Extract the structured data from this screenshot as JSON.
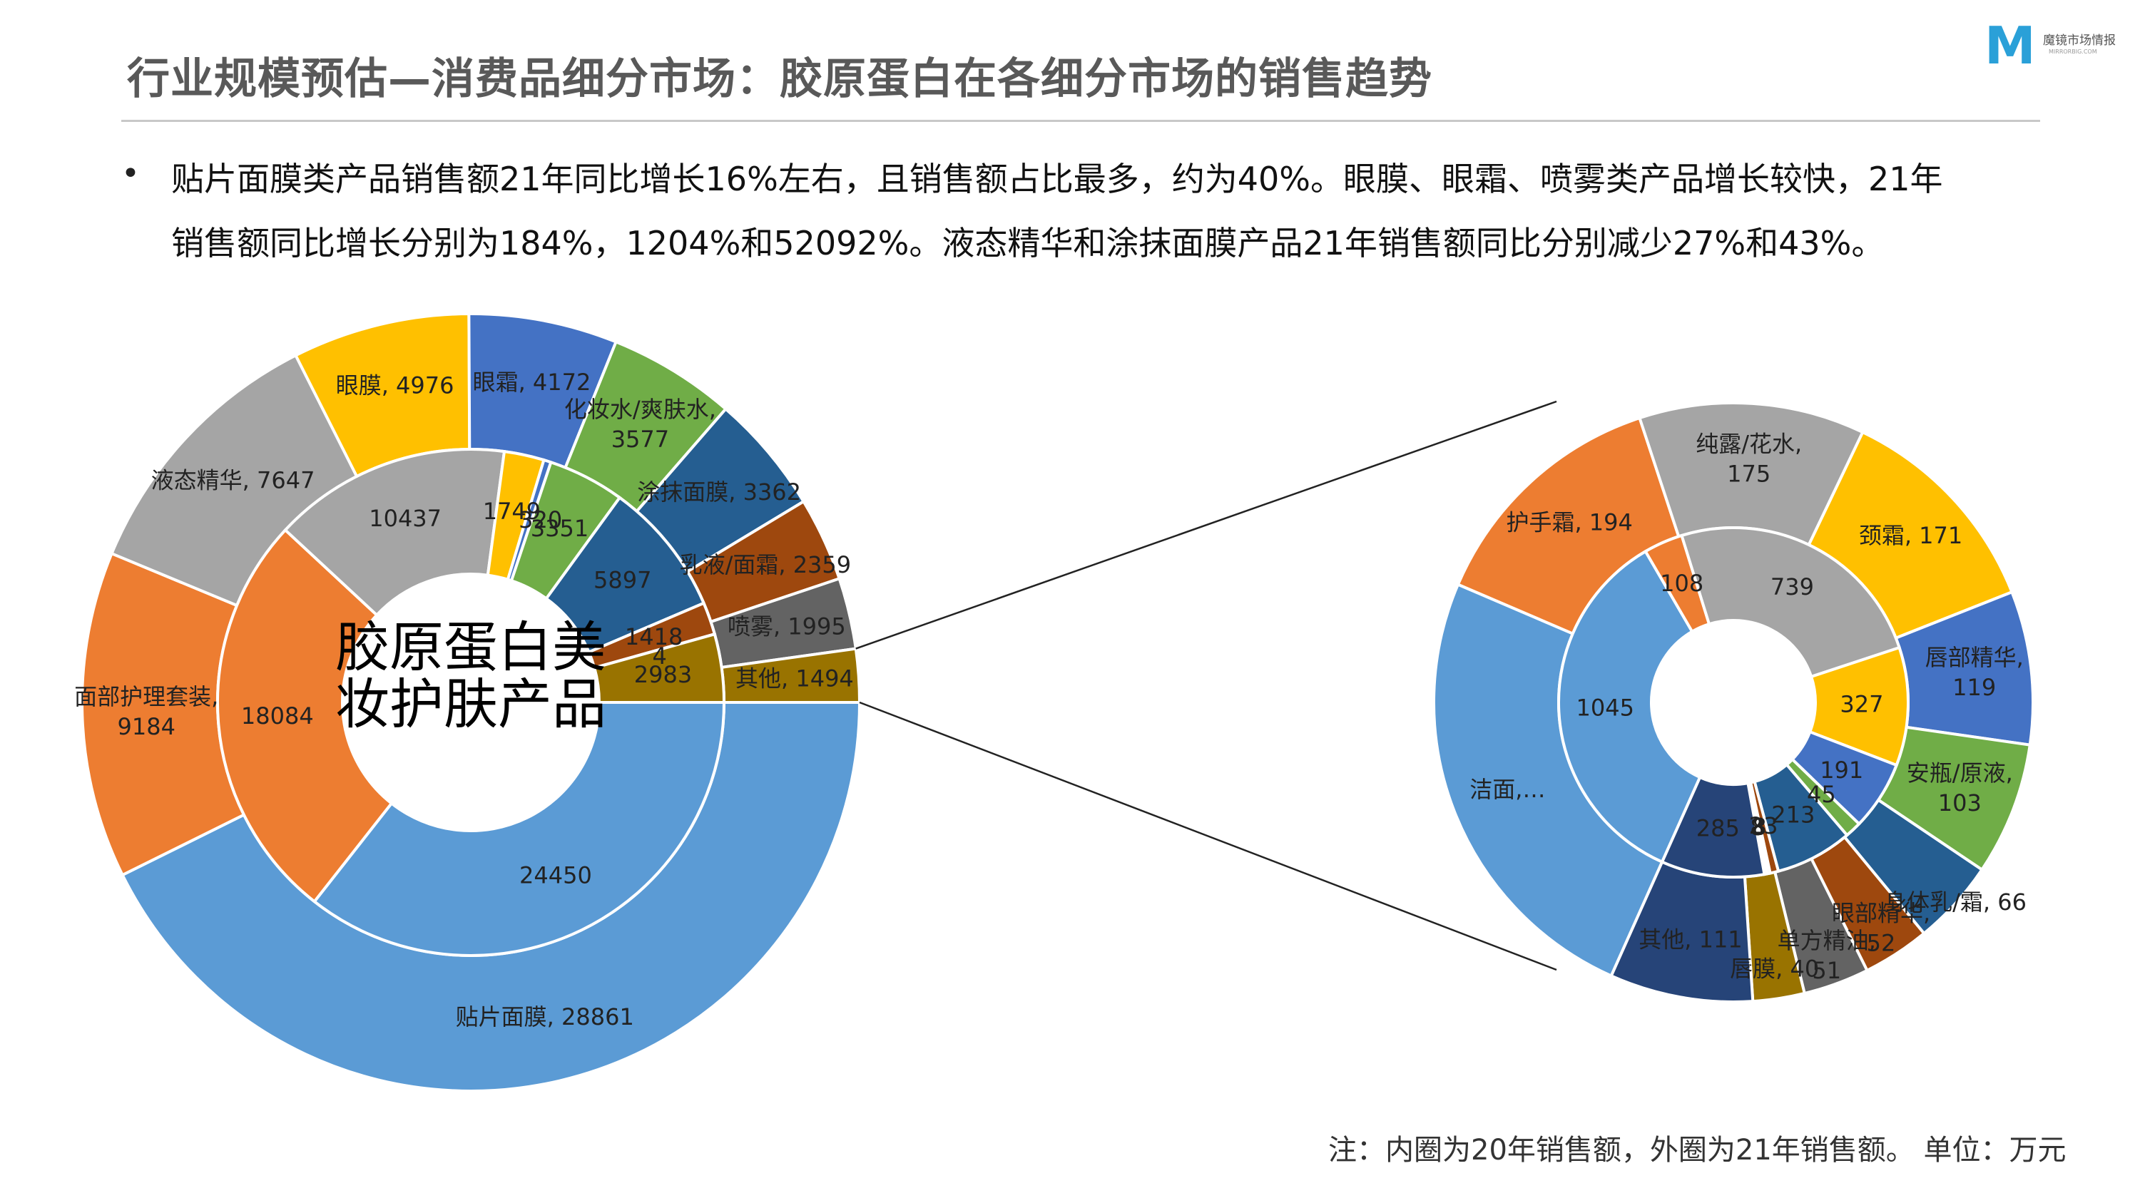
{
  "header": {
    "title": "行业规模预估—消费品细分市场：胶原蛋白在各细分市场的销售趋势",
    "logo_text": "魔镜市场情报",
    "logo_sub": "MIRRORBIG.COM",
    "logo_mark": "M"
  },
  "description": {
    "bullet": "•",
    "line1": "贴片面膜类产品销售额21年同比增长16%左右，且销售额占比最多，约为40%。眼膜、眼霜、喷雾类产品增长较快，21年",
    "line2": "销售额同比增长分别为184%，1204%和52092%。液态精华和涂抹面膜产品21年销售额同比分别减少27%和43%。"
  },
  "footnote": "注：内圈为20年销售额，外圈为21年销售额。 单位：万元",
  "chart_data": [
    {
      "type": "pie",
      "subtype": "double-donut",
      "center_label_line1": "胶原蛋白美",
      "center_label_line2": "妆护肤产品",
      "categories": [
        "贴片面膜",
        "面部护理套装",
        "液态精华",
        "眼膜",
        "眼霜",
        "化妆水/爽肤水",
        "涂抹面膜",
        "乳液/面霜",
        "喷雾",
        "其他"
      ],
      "colors": [
        "#5b9bd5",
        "#ed7d31",
        "#a5a5a5",
        "#ffc000",
        "#4472c4",
        "#70ad47",
        "#255e91",
        "#9e480e",
        "#636363",
        "#997300"
      ],
      "series": [
        {
          "name": "21年",
          "ring": "outer",
          "values": [
            28861,
            9184,
            7647,
            4976,
            4172,
            3577,
            3362,
            2359,
            1995,
            1494
          ],
          "labels": [
            "贴片面膜, 28861",
            "面部护理套装, 9184",
            "液态精华, 7647",
            "眼膜, 4976",
            "眼霜, 4172",
            "化妆水/爽肤水, 3577",
            "涂抹面膜, 3362",
            "乳液/面霜, 2359",
            "喷雾, 1995",
            "其他, 1494"
          ]
        },
        {
          "name": "20年",
          "ring": "inner",
          "values": [
            24450,
            18084,
            10437,
            1749,
            320,
            3351,
            5897,
            1418,
            4,
            2983
          ],
          "labels": [
            "24450",
            "18084",
            "10437",
            "1749",
            "320",
            "3351",
            "5897",
            "1418",
            "4",
            "2983"
          ]
        }
      ]
    },
    {
      "type": "pie",
      "subtype": "double-donut",
      "categories": [
        "洁面",
        "护手霜",
        "纯露/花水",
        "颈霜",
        "唇部精华",
        "安瓶/原液",
        "身体乳/霜",
        "眼部精华",
        "单方精油",
        "唇膜",
        "其他"
      ],
      "colors": [
        "#5b9bd5",
        "#ed7d31",
        "#a5a5a5",
        "#ffc000",
        "#4472c4",
        "#70ad47",
        "#255e91",
        "#9e480e",
        "#636363",
        "#997300",
        "#264478"
      ],
      "series": [
        {
          "name": "21年",
          "ring": "outer",
          "values": [
            356,
            194,
            175,
            171,
            119,
            103,
            66,
            52,
            51,
            40,
            111
          ],
          "labels": [
            "洁面,…",
            "护手霜, 194",
            "纯露/花水, 175",
            "颈霜, 171",
            "唇部精华, 119",
            "安瓶/原液, 103",
            "身体乳/霜, 66",
            "眼部精华, 52",
            "单方精油, 51",
            "唇膜, 40",
            "其他, 111"
          ]
        },
        {
          "name": "20年",
          "ring": "inner",
          "values": [
            1045,
            108,
            739,
            327,
            191,
            45,
            213,
            23,
            8,
            8,
            285
          ],
          "labels": [
            "1045",
            "108",
            "739",
            "327",
            "191",
            "45",
            "213",
            "23",
            "8",
            "8",
            "285"
          ]
        }
      ]
    }
  ]
}
